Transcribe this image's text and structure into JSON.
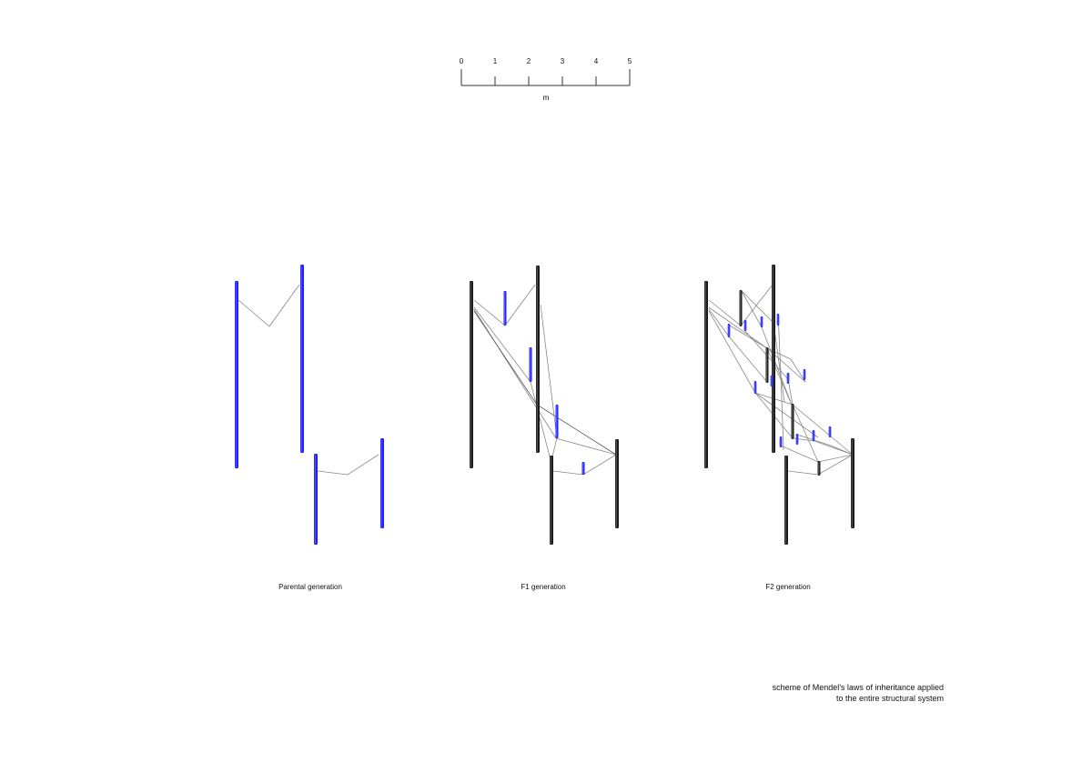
{
  "scale_bar": {
    "ticks": [
      "0",
      "1",
      "2",
      "3",
      "4",
      "5"
    ],
    "unit": "m"
  },
  "generations": [
    {
      "label": "Parental generation"
    },
    {
      "label": "F1 generation"
    },
    {
      "label": "F2 generation"
    }
  ],
  "caption": {
    "line1": "scheme of Mendel's laws of inheritance applied",
    "line2": "to the entire structural system"
  },
  "colors": {
    "parental_element": "#1f1fff",
    "inherited_element": "#1c1c1c",
    "connection": "#888888"
  }
}
